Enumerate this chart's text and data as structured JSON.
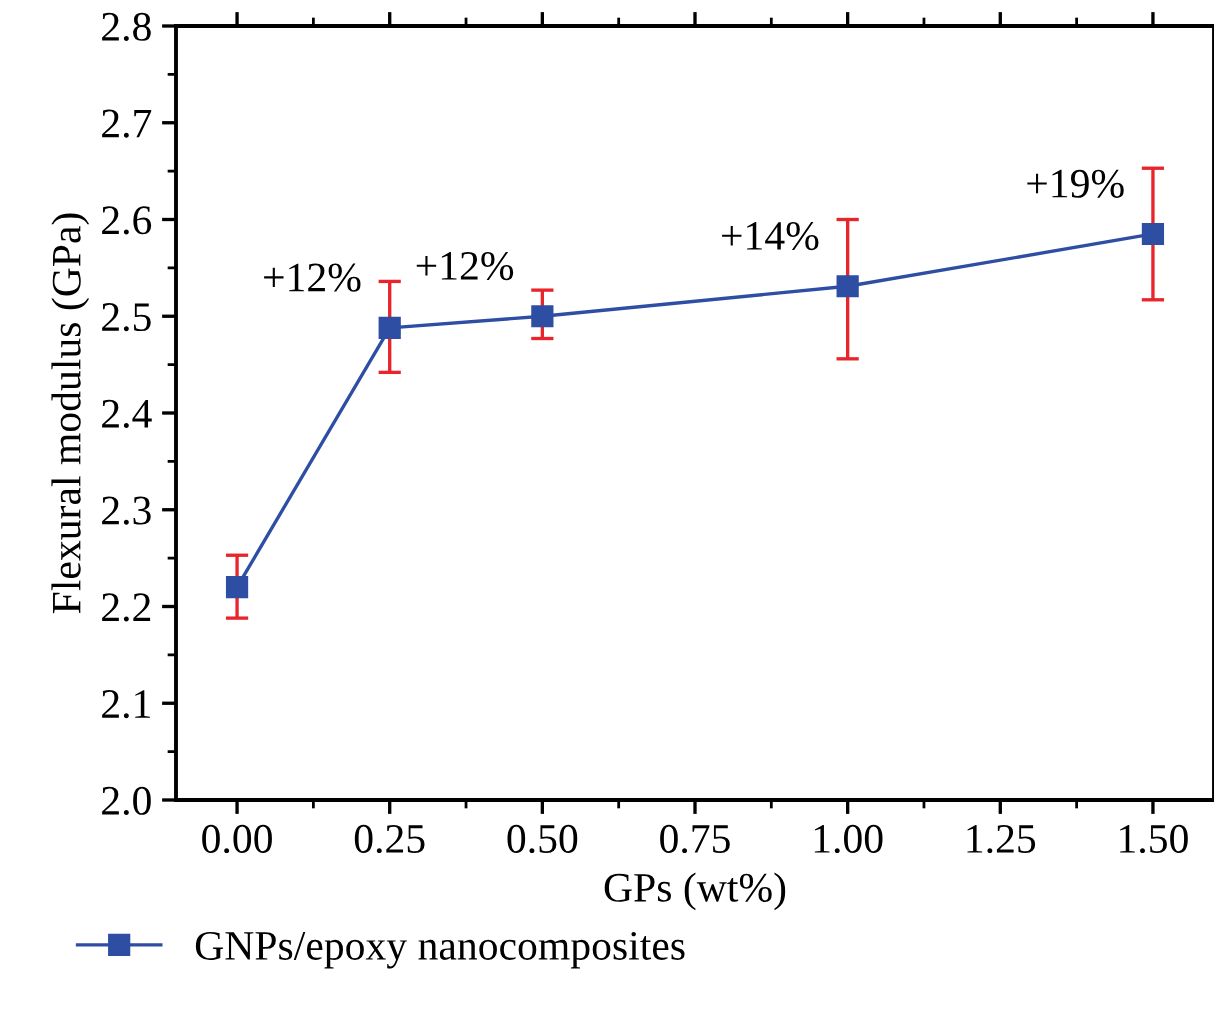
{
  "chart_data": {
    "type": "line",
    "xlabel": "GPs (wt%)",
    "ylabel": "Flexural modulus (GPa)",
    "x": [
      0,
      0.25,
      0.5,
      1.0,
      1.5
    ],
    "series": [
      {
        "name": "GNPs/epoxy nanocomposites",
        "color": "#2e4ea3",
        "values": [
          2.22,
          2.488,
          2.5,
          2.531,
          2.585
        ],
        "errors": [
          [
            2.188,
            2.253
          ],
          [
            2.442,
            2.536
          ],
          [
            2.477,
            2.527
          ],
          [
            2.456,
            2.6
          ],
          [
            2.517,
            2.653
          ]
        ]
      }
    ],
    "xlim": [
      -0.1,
      1.6
    ],
    "ylim": [
      2.0,
      2.8
    ],
    "xticks": [
      {
        "value": 0,
        "label": "0.00"
      },
      {
        "value": 0.25,
        "label": "0.25"
      },
      {
        "value": 0.5,
        "label": "0.50"
      },
      {
        "value": 0.75,
        "label": "0.75"
      },
      {
        "value": 1.0,
        "label": "1.00"
      },
      {
        "value": 1.25,
        "label": "1.25"
      },
      {
        "value": 1.5,
        "label": "1.50"
      }
    ],
    "yticks": [
      {
        "value": 2.0,
        "label": "2.0"
      },
      2.1,
      2.2,
      2.3,
      2.4,
      2.5,
      2.6,
      2.7,
      2.8
    ],
    "annotations": [
      {
        "text": "+12%",
        "x": 0.25,
        "y": 2.488
      },
      {
        "text": "+12%",
        "x": 0.5,
        "y": 2.5
      },
      {
        "text": "+14%",
        "x": 1.0,
        "y": 2.531
      },
      {
        "text": "+19%",
        "x": 1.5,
        "y": 2.585
      }
    ],
    "marker": "square",
    "line_style": "solid",
    "grid": false,
    "legend": "bottom left"
  }
}
